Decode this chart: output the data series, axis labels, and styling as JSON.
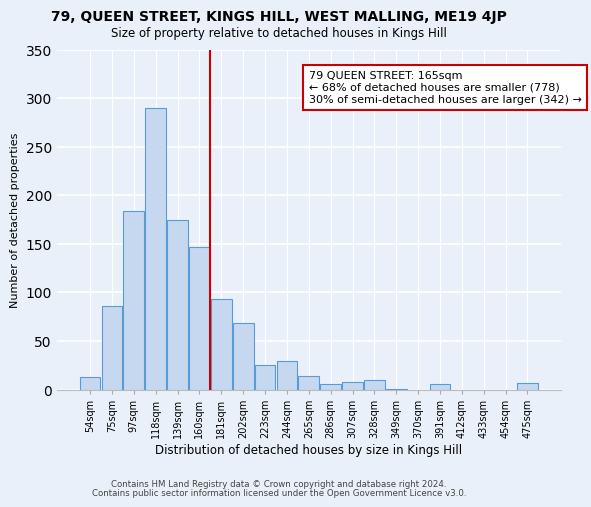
{
  "title1": "79, QUEEN STREET, KINGS HILL, WEST MALLING, ME19 4JP",
  "title2": "Size of property relative to detached houses in Kings Hill",
  "xlabel": "Distribution of detached houses by size in Kings Hill",
  "ylabel": "Number of detached properties",
  "bar_labels": [
    "54sqm",
    "75sqm",
    "97sqm",
    "118sqm",
    "139sqm",
    "160sqm",
    "181sqm",
    "202sqm",
    "223sqm",
    "244sqm",
    "265sqm",
    "286sqm",
    "307sqm",
    "328sqm",
    "349sqm",
    "370sqm",
    "391sqm",
    "412sqm",
    "433sqm",
    "454sqm",
    "475sqm"
  ],
  "bar_values": [
    13,
    86,
    184,
    290,
    174,
    147,
    93,
    68,
    25,
    29,
    14,
    6,
    8,
    10,
    1,
    0,
    6,
    0,
    0,
    0,
    7
  ],
  "bar_color": "#c5d8f0",
  "bar_edge_color": "#5b9bd5",
  "vline_x": 5.5,
  "vline_color": "#cc0000",
  "annotation_text": "79 QUEEN STREET: 165sqm\n← 68% of detached houses are smaller (778)\n30% of semi-detached houses are larger (342) →",
  "annotation_box_color": "#ffffff",
  "annotation_box_edge": "#cc0000",
  "ylim": [
    0,
    350
  ],
  "yticks": [
    0,
    50,
    100,
    150,
    200,
    250,
    300,
    350
  ],
  "footer1": "Contains HM Land Registry data © Crown copyright and database right 2024.",
  "footer2": "Contains public sector information licensed under the Open Government Licence v3.0.",
  "bg_color": "#eaf0fa",
  "plot_bg_color": "#eaf0fa"
}
